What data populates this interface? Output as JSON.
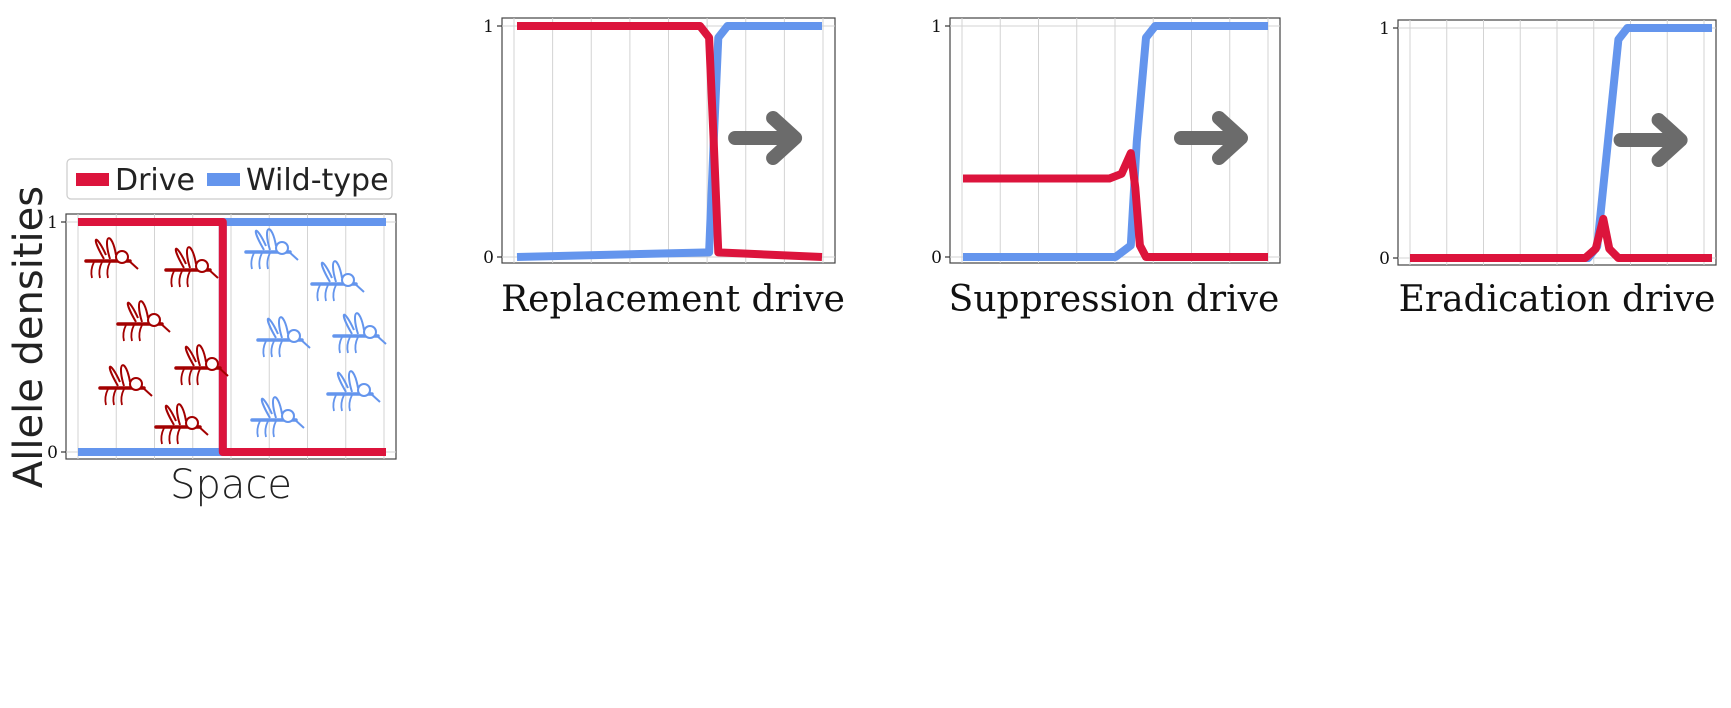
{
  "colors": {
    "drive": "#dc143c",
    "wild_type": "#6495ed",
    "arrow": "#6b6b6b",
    "mosquito_drive": "#a30000",
    "mosquito_wild": "#6495ed",
    "grid": "#d3d3d3"
  },
  "legend": {
    "placement": "top",
    "entries": [
      "Drive",
      "Wild-type"
    ]
  },
  "chart_data": [
    {
      "type": "line",
      "ylabel": "Allele densities",
      "xlabel": "Space",
      "title": "",
      "yticks": [
        "0",
        "1"
      ],
      "ylim": [
        0,
        1
      ],
      "xlim": [
        0,
        1
      ],
      "grid": true,
      "series": [
        {
          "name": "Drive",
          "x": [
            0,
            0.47,
            0.47,
            1
          ],
          "y": [
            1,
            1,
            0,
            0
          ]
        },
        {
          "name": "Wild-type",
          "x": [
            0,
            0.47,
            0.47,
            1
          ],
          "y": [
            0,
            0,
            1,
            1
          ]
        }
      ],
      "illustration": "mosquitoes: drive side left, wild-type side right"
    },
    {
      "type": "line",
      "title": "Replacement drive",
      "yticks": [
        "0",
        "1"
      ],
      "ylim": [
        0,
        1
      ],
      "xlim": [
        0,
        1
      ],
      "grid": true,
      "annotation": "arrow-right",
      "series": [
        {
          "name": "Drive",
          "x": [
            0,
            0.6,
            0.63,
            0.645,
            0.66,
            1
          ],
          "y": [
            1,
            1,
            0.95,
            0.5,
            0.02,
            0
          ]
        },
        {
          "name": "Wild-type",
          "x": [
            0,
            0.63,
            0.645,
            0.66,
            0.69,
            1
          ],
          "y": [
            0,
            0.02,
            0.5,
            0.95,
            1,
            1
          ]
        }
      ]
    },
    {
      "type": "line",
      "title": "Suppression drive",
      "yticks": [
        "0",
        "1"
      ],
      "ylim": [
        0,
        1
      ],
      "xlim": [
        0,
        1
      ],
      "grid": true,
      "annotation": "arrow-right",
      "series": [
        {
          "name": "Drive",
          "x": [
            0,
            0.48,
            0.52,
            0.55,
            0.565,
            0.58,
            0.6,
            1
          ],
          "y": [
            0.34,
            0.34,
            0.36,
            0.45,
            0.3,
            0.05,
            0,
            0
          ]
        },
        {
          "name": "Wild-type",
          "x": [
            0,
            0.5,
            0.55,
            0.57,
            0.6,
            0.63,
            1
          ],
          "y": [
            0,
            0,
            0.05,
            0.5,
            0.95,
            1,
            1
          ]
        }
      ]
    },
    {
      "type": "line",
      "title": "Eradication drive",
      "yticks": [
        "0",
        "1"
      ],
      "ylim": [
        0,
        1
      ],
      "xlim": [
        0,
        1
      ],
      "grid": true,
      "annotation": "arrow-right",
      "series": [
        {
          "name": "Drive",
          "x": [
            0,
            0.58,
            0.615,
            0.64,
            0.66,
            0.69,
            1
          ],
          "y": [
            0,
            0,
            0.04,
            0.17,
            0.04,
            0,
            0
          ]
        },
        {
          "name": "Wild-type",
          "x": [
            0,
            0.59,
            0.62,
            0.655,
            0.69,
            0.72,
            1
          ],
          "y": [
            0,
            0,
            0.05,
            0.5,
            0.95,
            1,
            1
          ]
        }
      ]
    }
  ]
}
